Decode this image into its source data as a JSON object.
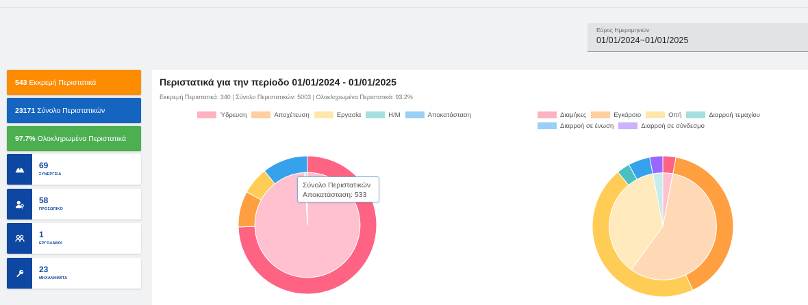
{
  "date_range": {
    "label": "Εύρος Ημερομηνιών",
    "value": "01/01/2024~01/01/2025"
  },
  "stat_cards": [
    {
      "value": "543",
      "label": "Εκκρεμή Περιστατικά",
      "color": "#fd8c00"
    },
    {
      "value": "23171",
      "label": "Σύνολο Περιστατικών",
      "color": "#1565c0"
    },
    {
      "value": "97.7%",
      "label": "Ολοκληρωμένα Περιστατικά",
      "color": "#4caf50"
    }
  ],
  "resource_cards": [
    {
      "value": "69",
      "caption": "ΣΥΝΕΡΓΕΙΑ",
      "icon": "hardhat-icon"
    },
    {
      "value": "58",
      "caption": "ΠΡΟΣΩΠΙΚΟ",
      "icon": "person-key-icon"
    },
    {
      "value": "1",
      "caption": "ΕΡΓΟΛΑΒΟΙ",
      "icon": "group-icon"
    },
    {
      "value": "23",
      "caption": "ΜΗΧΑΝΗΜΑΤΑ",
      "icon": "wrench-icon"
    }
  ],
  "panel": {
    "title": "Περιστατικά για την περίοδο 01/01/2024 - 01/01/2025",
    "subtitle": "Εκκρεμή Περιστατικά: 340 | Σύνολο Περιστατικών: 5003 | Ολοκληρωμένα Περιστατικά: 93.2%"
  },
  "tooltip": {
    "title": "Σύνολο Περιστατικών",
    "text": "Αποκατάσταση: 533"
  },
  "chart_data": [
    {
      "type": "pie",
      "legend": [
        {
          "name": "Ύδρευση",
          "color": "#ffb1c1"
        },
        {
          "name": "Αποχέτευση",
          "color": "#ffcf9f"
        },
        {
          "name": "Εργασία",
          "color": "#ffe6aa"
        },
        {
          "name": "Η/Μ",
          "color": "#a5dfdf"
        },
        {
          "name": "Αποκατάσταση",
          "color": "#9ad0f5"
        }
      ],
      "outer_ring": [
        {
          "name": "Ύδρευση",
          "value": 3730,
          "color": "#ff6384"
        },
        {
          "name": "Αποχέτευση",
          "value": 420,
          "color": "#ff9f40"
        },
        {
          "name": "Εργασία",
          "value": 320,
          "color": "#ffcd56"
        },
        {
          "name": "Η/Μ",
          "value": 0,
          "color": "#4bc0c0"
        },
        {
          "name": "Αποκατάσταση",
          "value": 533,
          "color": "#36a2eb"
        }
      ],
      "inner_ring": [
        {
          "name": "Ύδρευση",
          "value": 4960,
          "color": "#ffc0cf"
        },
        {
          "name": "Αποχέτευση",
          "value": 4,
          "color": "#ffe0c2"
        },
        {
          "name": "Εργασία",
          "value": 4,
          "color": "#ffeecc"
        },
        {
          "name": "Η/Μ",
          "value": 0,
          "color": "#c8ecec"
        },
        {
          "name": "Αποκατάσταση",
          "value": 35,
          "color": "#c4e2f8"
        }
      ]
    },
    {
      "type": "pie",
      "legend": [
        {
          "name": "Διαμήκες",
          "color": "#ffb1c1"
        },
        {
          "name": "Εγκάρσιο",
          "color": "#ffcf9f"
        },
        {
          "name": "Οπή",
          "color": "#ffe6aa"
        },
        {
          "name": "Διαρροή τεμαχίου",
          "color": "#a5dfdf"
        },
        {
          "name": "Διαρροή σε ένωση",
          "color": "#9ad0f5"
        },
        {
          "name": "Διαρροή σε σύνδεσμο",
          "color": "#ccb2ff"
        }
      ],
      "outer_ring": [
        {
          "name": "Διαμήκες",
          "value": 3,
          "color": "#ff6384"
        },
        {
          "name": "Εγκάρσιο",
          "value": 40,
          "color": "#ff9f40"
        },
        {
          "name": "Οπή",
          "value": 46,
          "color": "#ffcd56"
        },
        {
          "name": "Διαρροή τεμαχίου",
          "value": 3,
          "color": "#4bc0c0"
        },
        {
          "name": "Διαρροή σε ένωση",
          "value": 5,
          "color": "#36a2eb"
        },
        {
          "name": "Διαρροή σε σύνδεσμο",
          "value": 3,
          "color": "#9966ff"
        }
      ],
      "inner_ring": [
        {
          "name": "Διαμήκες",
          "value": 3,
          "color": "#ffc0cf"
        },
        {
          "name": "Εγκάρσιο",
          "value": 57,
          "color": "#ffd9b5"
        },
        {
          "name": "Οπή",
          "value": 37,
          "color": "#ffe9bd"
        },
        {
          "name": "Διαρροή τεμαχίου",
          "value": 3,
          "color": "#c8ecec"
        },
        {
          "name": "Διαρροή σε ένωση",
          "value": 0,
          "color": "#c4e2f8"
        },
        {
          "name": "Διαρροή σε σύνδεσμο",
          "value": 0,
          "color": "#dccbff"
        }
      ]
    }
  ]
}
